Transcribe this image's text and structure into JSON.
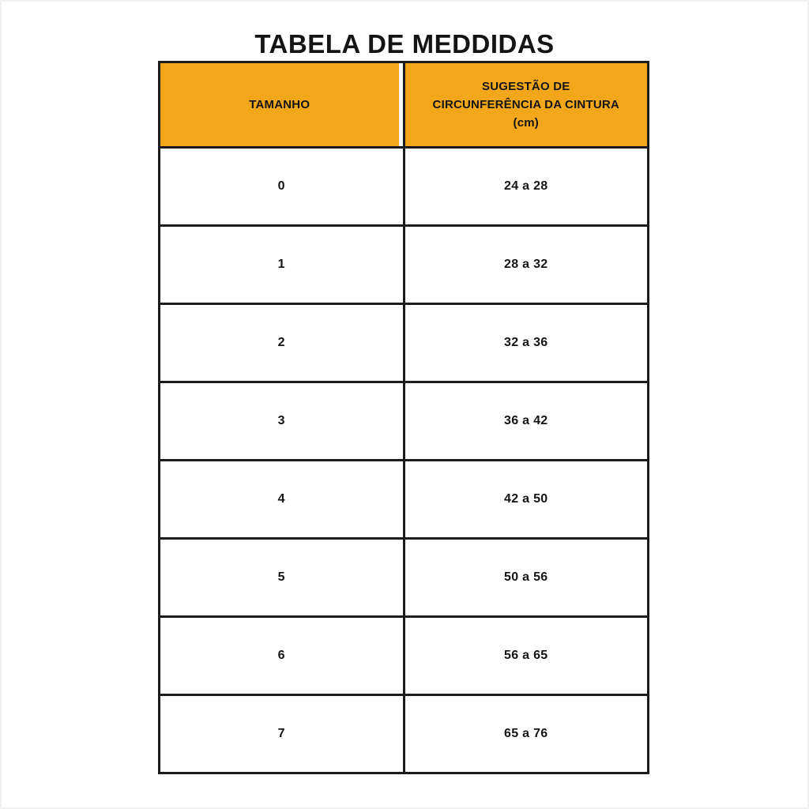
{
  "title": "TABELA DE MEDDIDAS",
  "colors": {
    "accent": "#F2A71B",
    "border": "#1B1B1B",
    "text": "#141414",
    "background": "#FFFFFF"
  },
  "table": {
    "header": {
      "size_label": "TAMANHO",
      "range_line1": "SUGESTÃO DE",
      "range_line2": "CIRCUNFERÊNCIA DA CINTURA",
      "range_line3": "(cm)"
    },
    "rows": [
      {
        "size": "0",
        "range": "24 a 28"
      },
      {
        "size": "1",
        "range": "28 a 32"
      },
      {
        "size": "2",
        "range": "32 a 36"
      },
      {
        "size": "3",
        "range": "36 a 42"
      },
      {
        "size": "4",
        "range": "42 a 50"
      },
      {
        "size": "5",
        "range": "50 a 56"
      },
      {
        "size": "6",
        "range": "56 a 65"
      },
      {
        "size": "7",
        "range": "65 a 76"
      }
    ]
  }
}
